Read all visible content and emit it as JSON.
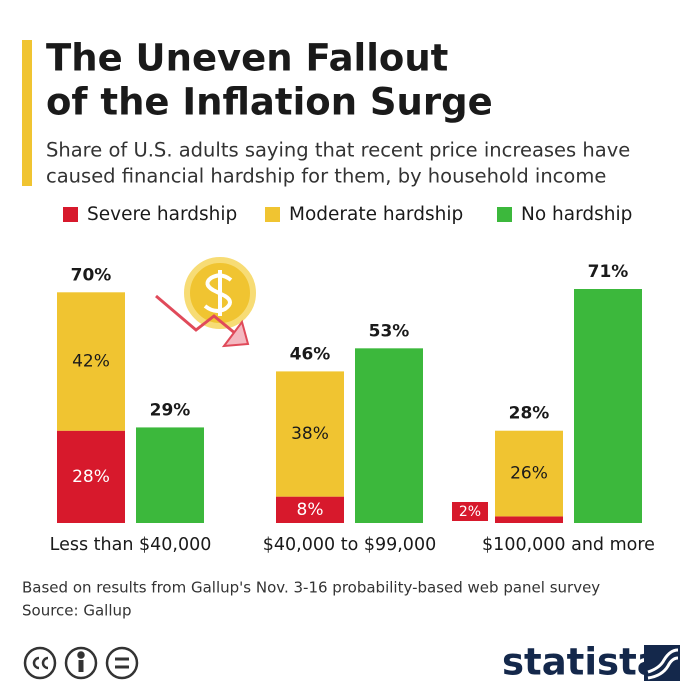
{
  "chart_data": {
    "type": "grouped_stacked_bar",
    "title": [
      "The Uneven Fallout",
      "of the Inflation Surge"
    ],
    "subtitle": [
      "Share of U.S. adults saying that recent price increases have",
      "caused financial hardship for them, by household income"
    ],
    "categories": [
      "Less than $40,000",
      "$40,000 to $99,000",
      "$100,000 and more"
    ],
    "series": [
      {
        "name": "Severe hardship",
        "color": "#d7192c",
        "stack": "hardship",
        "values": [
          28,
          8,
          2
        ],
        "value_labels": [
          "28%",
          "8%",
          "2%"
        ]
      },
      {
        "name": "Moderate hardship",
        "color": "#f0c431",
        "stack": "hardship",
        "values": [
          42,
          38,
          26
        ],
        "value_labels": [
          "42%",
          "38%",
          "26%"
        ]
      },
      {
        "name": "No hardship",
        "color": "#3cb83c",
        "stack": "none",
        "values": [
          29,
          53,
          71
        ],
        "value_labels": [
          "29%",
          "53%",
          "71%"
        ]
      }
    ],
    "totals": {
      "values": [
        70,
        46,
        28
      ],
      "value_labels": [
        "70%",
        "46%",
        "28%"
      ]
    },
    "notes": [
      "Based on results from Gallup's Nov. 3-16 probability-based web panel survey",
      "Source: Gallup"
    ],
    "brand": "statista"
  }
}
